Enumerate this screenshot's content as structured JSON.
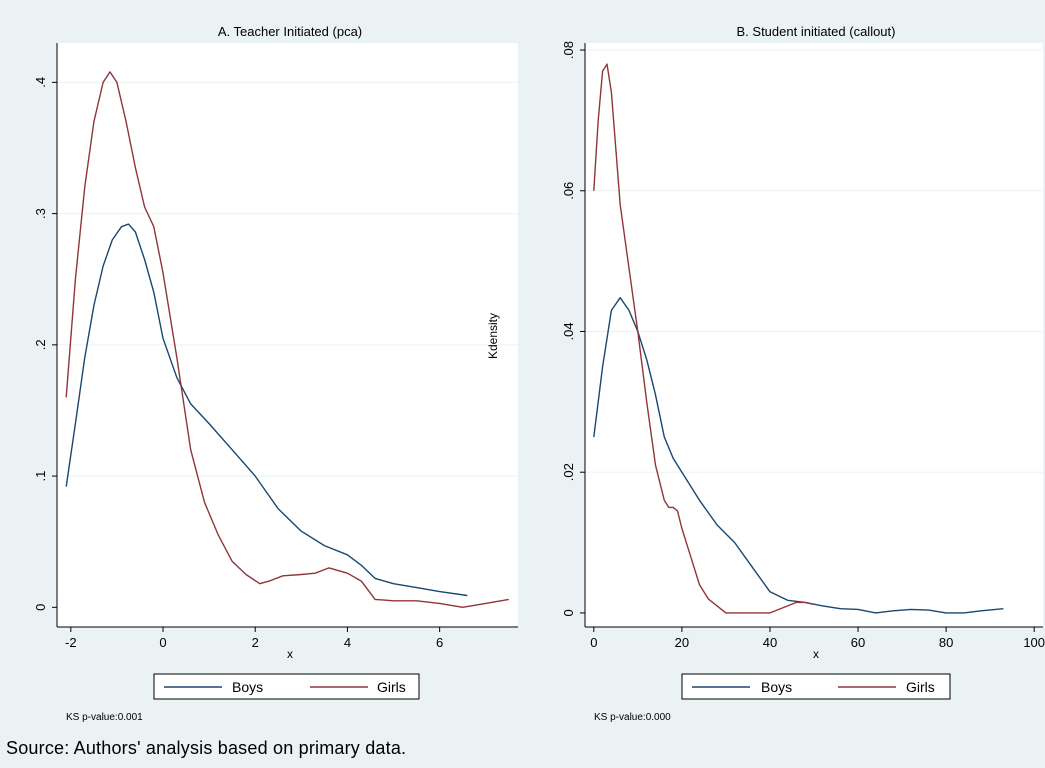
{
  "source_note": "Source: Authors' analysis based on primary data.",
  "shared_ylabel": "Kdensity",
  "colors": {
    "boys": "#1a476f",
    "girls": "#90353b",
    "background": "#eaf2f3",
    "plot_area": "#ffffff",
    "grid": "#eaf2f3"
  },
  "chart_data": [
    {
      "type": "line",
      "title": "A. Teacher Initiated (pca)",
      "xlabel": "x",
      "ylabel": "",
      "xlim": [
        -2.3,
        7.7
      ],
      "ylim": [
        -0.015,
        0.43
      ],
      "xticks": [
        -2,
        0,
        2,
        4,
        6
      ],
      "xtick_labels": [
        "-2",
        "0",
        "2",
        "4",
        "6"
      ],
      "yticks": [
        0,
        0.1,
        0.2,
        0.3,
        0.4
      ],
      "ytick_labels": [
        "0",
        ".1",
        ".2",
        ".3",
        ".4"
      ],
      "grid": true,
      "legend": "bottom",
      "note": "KS p-value:0.001",
      "series": [
        {
          "name": "Boys",
          "color": "#1a476f",
          "x": [
            -2.1,
            -1.9,
            -1.7,
            -1.5,
            -1.3,
            -1.1,
            -0.9,
            -0.75,
            -0.6,
            -0.4,
            -0.2,
            0.0,
            0.3,
            0.6,
            1.0,
            1.5,
            2.0,
            2.5,
            3.0,
            3.5,
            4.0,
            4.3,
            4.6,
            5.0,
            5.5,
            6.0,
            6.6
          ],
          "y": [
            0.092,
            0.14,
            0.19,
            0.23,
            0.26,
            0.28,
            0.29,
            0.292,
            0.286,
            0.265,
            0.24,
            0.205,
            0.175,
            0.155,
            0.14,
            0.12,
            0.1,
            0.075,
            0.058,
            0.047,
            0.04,
            0.032,
            0.022,
            0.018,
            0.015,
            0.012,
            0.009
          ]
        },
        {
          "name": "Girls",
          "color": "#90353b",
          "x": [
            -2.1,
            -1.9,
            -1.7,
            -1.5,
            -1.3,
            -1.15,
            -1.0,
            -0.8,
            -0.6,
            -0.4,
            -0.2,
            0.0,
            0.3,
            0.6,
            0.9,
            1.2,
            1.5,
            1.8,
            2.1,
            2.3,
            2.6,
            3.0,
            3.3,
            3.6,
            4.0,
            4.3,
            4.6,
            5.0,
            5.5,
            6.0,
            6.5,
            7.0,
            7.5
          ],
          "y": [
            0.16,
            0.25,
            0.32,
            0.37,
            0.4,
            0.408,
            0.4,
            0.37,
            0.335,
            0.305,
            0.29,
            0.255,
            0.19,
            0.12,
            0.08,
            0.055,
            0.035,
            0.025,
            0.018,
            0.02,
            0.024,
            0.025,
            0.026,
            0.03,
            0.026,
            0.02,
            0.006,
            0.005,
            0.005,
            0.003,
            0.0,
            0.003,
            0.006
          ]
        }
      ]
    },
    {
      "type": "line",
      "title": "B. Student initiated (callout)",
      "xlabel": "x",
      "ylabel": "",
      "xlim": [
        -2,
        102
      ],
      "ylim": [
        -0.002,
        0.081
      ],
      "xticks": [
        0,
        20,
        40,
        60,
        80,
        100
      ],
      "xtick_labels": [
        "0",
        "20",
        "40",
        "60",
        "80",
        "100"
      ],
      "yticks": [
        0,
        0.02,
        0.04,
        0.06,
        0.08
      ],
      "ytick_labels": [
        "0",
        ".02",
        ".04",
        ".06",
        ".08"
      ],
      "grid": true,
      "legend": "bottom",
      "note": "KS p-value:0.000",
      "series": [
        {
          "name": "Boys",
          "color": "#1a476f",
          "x": [
            0,
            2,
            4,
            6,
            8,
            10,
            12,
            14,
            16,
            18,
            20,
            24,
            28,
            32,
            36,
            40,
            44,
            48,
            52,
            56,
            60,
            64,
            68,
            72,
            76,
            80,
            84,
            88,
            93
          ],
          "y": [
            0.025,
            0.035,
            0.043,
            0.0448,
            0.043,
            0.04,
            0.036,
            0.031,
            0.025,
            0.022,
            0.02,
            0.016,
            0.0125,
            0.01,
            0.0065,
            0.003,
            0.0018,
            0.0015,
            0.001,
            0.0006,
            0.0005,
            0.0,
            0.0003,
            0.0005,
            0.0004,
            0.0,
            0.0,
            0.0003,
            0.0006
          ]
        },
        {
          "name": "Girls",
          "color": "#90353b",
          "x": [
            0,
            1,
            2,
            3,
            4,
            5,
            6,
            8,
            10,
            12,
            14,
            16,
            17,
            18,
            19,
            20,
            22,
            24,
            26,
            28,
            30,
            34,
            38,
            40,
            44,
            46,
            48,
            50
          ],
          "y": [
            0.06,
            0.07,
            0.077,
            0.078,
            0.074,
            0.066,
            0.058,
            0.049,
            0.04,
            0.03,
            0.021,
            0.016,
            0.015,
            0.015,
            0.0145,
            0.012,
            0.008,
            0.004,
            0.002,
            0.001,
            0.0,
            0.0,
            0.0,
            0.0,
            0.001,
            0.0015,
            0.0015,
            0.0012
          ]
        }
      ]
    }
  ]
}
